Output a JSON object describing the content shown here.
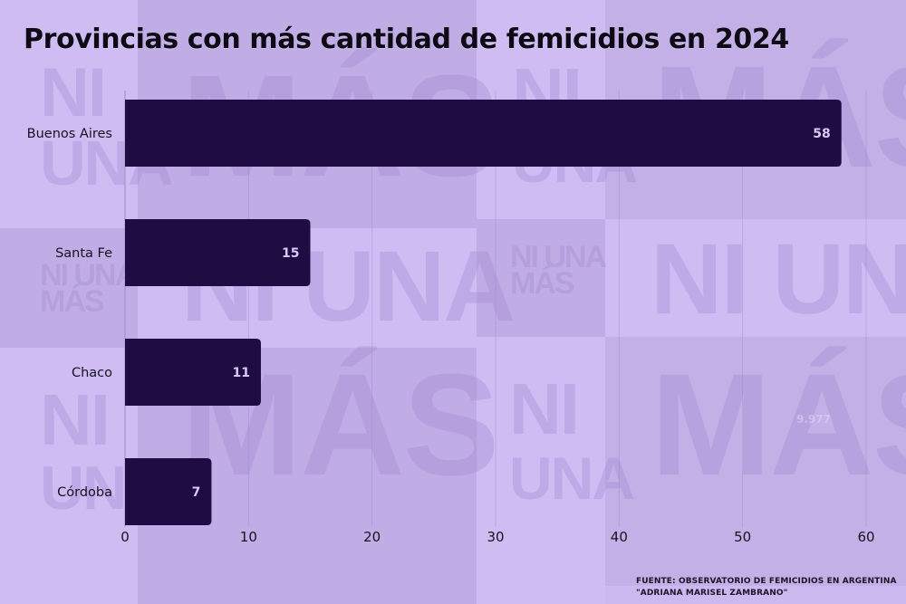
{
  "colors": {
    "bar": "#1f0c42",
    "bg_light": "#cebcf2",
    "bg_mid": "#c1ade5",
    "text": "#16121f",
    "value_label": "#d8c9f6"
  },
  "watermark": {
    "line1": "NI",
    "line2": "UNA",
    "line3": "MÁS",
    "inline": "NI UNA",
    "short": "NI UNA\nMÁS"
  },
  "ghost_text": "9.977",
  "source": {
    "line1": "FUENTE:  OBSERVATORIO DE FEMICIDIOS EN ARGENTINA",
    "line2": "\"ADRIANA MARISEL ZAMBRANO\""
  },
  "chart_data": {
    "type": "bar",
    "orientation": "horizontal",
    "title": "Provincias con más cantidad de femicidios en 2024",
    "categories": [
      "Buenos Aires",
      "Santa Fe",
      "Chaco",
      "Córdoba"
    ],
    "values": [
      58,
      15,
      11,
      7
    ],
    "data_labels": [
      "58",
      "15",
      "11",
      "7"
    ],
    "xlabel": "",
    "ylabel": "",
    "xlim": [
      0,
      60
    ],
    "x_ticks": [
      0,
      10,
      20,
      30,
      40,
      50,
      60
    ],
    "x_tick_labels": [
      "0",
      "10",
      "20",
      "30",
      "40",
      "50",
      "60"
    ],
    "grid": true,
    "legend": "none"
  }
}
